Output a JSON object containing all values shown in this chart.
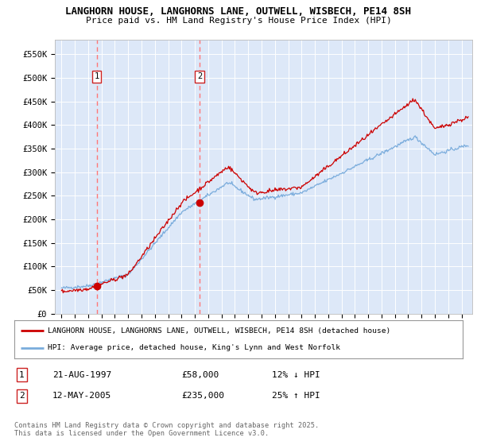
{
  "title_line1": "LANGHORN HOUSE, LANGHORNS LANE, OUTWELL, WISBECH, PE14 8SH",
  "title_line2": "Price paid vs. HM Land Registry's House Price Index (HPI)",
  "background_color": "#ffffff",
  "plot_bg_color": "#dde8f8",
  "grid_color": "#ffffff",
  "sale1_year": 1997.64,
  "sale1_price": 58000,
  "sale2_year": 2005.36,
  "sale2_price": 235000,
  "yticks": [
    0,
    50000,
    100000,
    150000,
    200000,
    250000,
    300000,
    350000,
    400000,
    450000,
    500000,
    550000
  ],
  "ylim": [
    0,
    580000
  ],
  "xlim_start": 1994.5,
  "xlim_end": 2025.8,
  "hpi_color": "#7aacdc",
  "price_color": "#cc0000",
  "vline_color": "#ff7777",
  "legend_house": "LANGHORN HOUSE, LANGHORNS LANE, OUTWELL, WISBECH, PE14 8SH (detached house)",
  "legend_hpi": "HPI: Average price, detached house, King's Lynn and West Norfolk",
  "footnote": "Contains HM Land Registry data © Crown copyright and database right 2025.\nThis data is licensed under the Open Government Licence v3.0.",
  "table_row1_label": "1",
  "table_row1_date": "21-AUG-1997",
  "table_row1_price": "£58,000",
  "table_row1_hpi": "12% ↓ HPI",
  "table_row2_label": "2",
  "table_row2_date": "12-MAY-2005",
  "table_row2_price": "£235,000",
  "table_row2_hpi": "25% ↑ HPI"
}
